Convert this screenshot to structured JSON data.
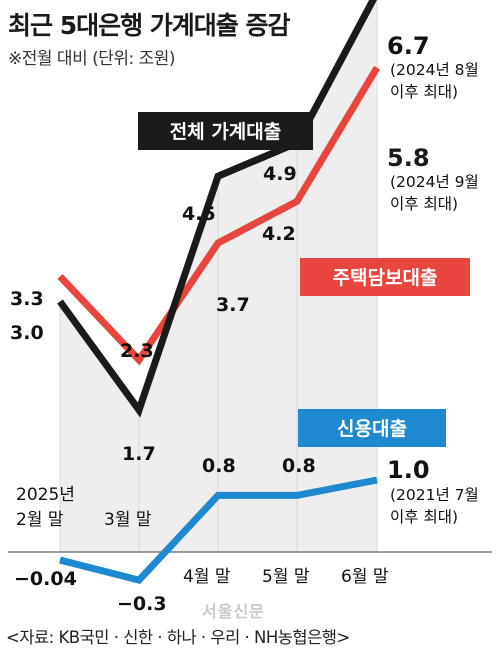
{
  "title": "최근 5대은행 가계대출 증감",
  "subtitle": "※전월 대비 (단위: 조원)",
  "source": "<자료: KB국민 · 신한 · 하나 · 우리 · NH농협은행>",
  "watermark": "서울신문",
  "colors": {
    "total": "#1a1a1a",
    "mortgage": "#e8453c",
    "credit": "#1e88d0",
    "area": "#eeeeee"
  },
  "chart_data": {
    "type": "line",
    "categories": [
      "2025년 2월 말",
      "3월 말",
      "4월 말",
      "5월 말",
      "6월 말"
    ],
    "category_labels": [
      {
        "lines": [
          "2025년",
          "2월 말"
        ]
      },
      {
        "lines": [
          "3월 말"
        ]
      },
      {
        "lines": [
          "4월 말"
        ]
      },
      {
        "lines": [
          "5월 말"
        ]
      },
      {
        "lines": [
          "6월 말"
        ]
      }
    ],
    "series": [
      {
        "name": "전체 가계대출",
        "values": [
          3.0,
          1.7,
          4.5,
          4.9,
          6.7
        ],
        "labels": [
          "3.0",
          "1.7",
          "4.5",
          "4.9",
          "6.7"
        ],
        "note": [
          "(2024년 8월",
          "이후 최대)"
        ]
      },
      {
        "name": "주택담보대출",
        "values": [
          3.3,
          2.3,
          3.7,
          4.2,
          5.8
        ],
        "labels": [
          "3.3",
          "2.3",
          "3.7",
          "4.2",
          "5.8"
        ],
        "note": [
          "(2024년 9월",
          "이후 최대)"
        ]
      },
      {
        "name": "신용대출",
        "values": [
          -0.04,
          -0.3,
          0.8,
          0.8,
          1.0
        ],
        "labels": [
          "−0.04",
          "−0.3",
          "0.8",
          "0.8",
          "1.0"
        ],
        "note": [
          "(2021년 7월",
          "이후 최대)"
        ]
      }
    ]
  }
}
